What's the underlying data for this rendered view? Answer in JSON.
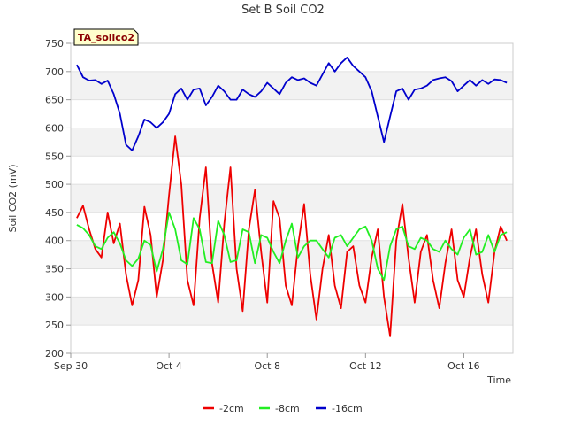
{
  "chart_data": {
    "type": "line",
    "title": "Set B Soil CO2",
    "xlabel": "Time",
    "ylabel": "Soil CO2 (mV)",
    "tag": "TA_soilco2",
    "ylim": [
      200,
      750
    ],
    "yticks": [
      200,
      250,
      300,
      350,
      400,
      450,
      500,
      550,
      600,
      650,
      700,
      750
    ],
    "xlim": [
      "2023-09-30",
      "2023-10-18"
    ],
    "xticks": [
      {
        "label": "Sep 30",
        "date": "2023-09-30"
      },
      {
        "label": "Oct 4",
        "date": "2023-10-04"
      },
      {
        "label": "Oct 8",
        "date": "2023-10-08"
      },
      {
        "label": "Oct 12",
        "date": "2023-10-12"
      },
      {
        "label": "Oct 16",
        "date": "2023-10-16"
      }
    ],
    "grid": true,
    "legend_position": "bottom",
    "series": [
      {
        "name": "-2cm",
        "color": "#ee0000",
        "points": [
          [
            "2023-09-30T06:00",
            440
          ],
          [
            "2023-09-30T12:00",
            462
          ],
          [
            "2023-09-30T18:00",
            420
          ],
          [
            "2023-10-01T00:00",
            385
          ],
          [
            "2023-10-01T06:00",
            370
          ],
          [
            "2023-10-01T12:00",
            450
          ],
          [
            "2023-10-01T18:00",
            395
          ],
          [
            "2023-10-02T00:00",
            430
          ],
          [
            "2023-10-02T06:00",
            340
          ],
          [
            "2023-10-02T12:00",
            285
          ],
          [
            "2023-10-02T18:00",
            330
          ],
          [
            "2023-10-03T00:00",
            460
          ],
          [
            "2023-10-03T06:00",
            410
          ],
          [
            "2023-10-03T12:00",
            300
          ],
          [
            "2023-10-03T18:00",
            365
          ],
          [
            "2023-10-04T00:00",
            480
          ],
          [
            "2023-10-04T06:00",
            585
          ],
          [
            "2023-10-04T12:00",
            500
          ],
          [
            "2023-10-04T18:00",
            330
          ],
          [
            "2023-10-05T00:00",
            285
          ],
          [
            "2023-10-05T06:00",
            440
          ],
          [
            "2023-10-05T12:00",
            530
          ],
          [
            "2023-10-05T18:00",
            360
          ],
          [
            "2023-10-06T00:00",
            290
          ],
          [
            "2023-10-06T06:00",
            430
          ],
          [
            "2023-10-06T12:00",
            530
          ],
          [
            "2023-10-06T18:00",
            350
          ],
          [
            "2023-10-07T00:00",
            275
          ],
          [
            "2023-10-07T06:00",
            420
          ],
          [
            "2023-10-07T12:00",
            490
          ],
          [
            "2023-10-07T18:00",
            380
          ],
          [
            "2023-10-08T00:00",
            290
          ],
          [
            "2023-10-08T06:00",
            470
          ],
          [
            "2023-10-08T12:00",
            440
          ],
          [
            "2023-10-08T18:00",
            320
          ],
          [
            "2023-10-09T00:00",
            285
          ],
          [
            "2023-10-09T06:00",
            390
          ],
          [
            "2023-10-09T12:00",
            465
          ],
          [
            "2023-10-09T18:00",
            340
          ],
          [
            "2023-10-10T00:00",
            260
          ],
          [
            "2023-10-10T06:00",
            350
          ],
          [
            "2023-10-10T12:00",
            410
          ],
          [
            "2023-10-10T18:00",
            320
          ],
          [
            "2023-10-11T00:00",
            280
          ],
          [
            "2023-10-11T06:00",
            380
          ],
          [
            "2023-10-11T12:00",
            390
          ],
          [
            "2023-10-11T18:00",
            320
          ],
          [
            "2023-10-12T00:00",
            290
          ],
          [
            "2023-10-12T06:00",
            370
          ],
          [
            "2023-10-12T12:00",
            420
          ],
          [
            "2023-10-12T18:00",
            300
          ],
          [
            "2023-10-13T00:00",
            230
          ],
          [
            "2023-10-13T06:00",
            400
          ],
          [
            "2023-10-13T12:00",
            465
          ],
          [
            "2023-10-13T18:00",
            370
          ],
          [
            "2023-10-14T00:00",
            290
          ],
          [
            "2023-10-14T06:00",
            380
          ],
          [
            "2023-10-14T12:00",
            410
          ],
          [
            "2023-10-14T18:00",
            330
          ],
          [
            "2023-10-15T00:00",
            280
          ],
          [
            "2023-10-15T06:00",
            360
          ],
          [
            "2023-10-15T12:00",
            420
          ],
          [
            "2023-10-15T18:00",
            330
          ],
          [
            "2023-10-16T00:00",
            300
          ],
          [
            "2023-10-16T06:00",
            370
          ],
          [
            "2023-10-16T12:00",
            420
          ],
          [
            "2023-10-16T18:00",
            340
          ],
          [
            "2023-10-17T00:00",
            290
          ],
          [
            "2023-10-17T06:00",
            380
          ],
          [
            "2023-10-17T12:00",
            425
          ],
          [
            "2023-10-17T18:00",
            400
          ]
        ]
      },
      {
        "name": "-8cm",
        "color": "#22ee22",
        "points": [
          [
            "2023-09-30T06:00",
            428
          ],
          [
            "2023-09-30T12:00",
            422
          ],
          [
            "2023-09-30T18:00",
            410
          ],
          [
            "2023-10-01T00:00",
            390
          ],
          [
            "2023-10-01T06:00",
            385
          ],
          [
            "2023-10-01T12:00",
            405
          ],
          [
            "2023-10-01T18:00",
            415
          ],
          [
            "2023-10-02T00:00",
            395
          ],
          [
            "2023-10-02T06:00",
            365
          ],
          [
            "2023-10-02T12:00",
            355
          ],
          [
            "2023-10-02T18:00",
            368
          ],
          [
            "2023-10-03T00:00",
            400
          ],
          [
            "2023-10-03T06:00",
            392
          ],
          [
            "2023-10-03T12:00",
            345
          ],
          [
            "2023-10-03T18:00",
            385
          ],
          [
            "2023-10-04T00:00",
            450
          ],
          [
            "2023-10-04T06:00",
            420
          ],
          [
            "2023-10-04T12:00",
            365
          ],
          [
            "2023-10-04T18:00",
            358
          ],
          [
            "2023-10-05T00:00",
            440
          ],
          [
            "2023-10-05T06:00",
            420
          ],
          [
            "2023-10-05T12:00",
            362
          ],
          [
            "2023-10-05T18:00",
            360
          ],
          [
            "2023-10-06T00:00",
            435
          ],
          [
            "2023-10-06T06:00",
            410
          ],
          [
            "2023-10-06T12:00",
            362
          ],
          [
            "2023-10-06T18:00",
            365
          ],
          [
            "2023-10-07T00:00",
            420
          ],
          [
            "2023-10-07T06:00",
            415
          ],
          [
            "2023-10-07T12:00",
            360
          ],
          [
            "2023-10-07T18:00",
            410
          ],
          [
            "2023-10-08T00:00",
            405
          ],
          [
            "2023-10-08T06:00",
            380
          ],
          [
            "2023-10-08T12:00",
            360
          ],
          [
            "2023-10-08T18:00",
            400
          ],
          [
            "2023-10-09T00:00",
            430
          ],
          [
            "2023-10-09T06:00",
            370
          ],
          [
            "2023-10-09T12:00",
            390
          ],
          [
            "2023-10-09T18:00",
            400
          ],
          [
            "2023-10-10T00:00",
            400
          ],
          [
            "2023-10-10T06:00",
            385
          ],
          [
            "2023-10-10T12:00",
            370
          ],
          [
            "2023-10-10T18:00",
            405
          ],
          [
            "2023-10-11T00:00",
            410
          ],
          [
            "2023-10-11T06:00",
            390
          ],
          [
            "2023-10-11T12:00",
            405
          ],
          [
            "2023-10-11T18:00",
            420
          ],
          [
            "2023-10-12T00:00",
            425
          ],
          [
            "2023-10-12T06:00",
            400
          ],
          [
            "2023-10-12T12:00",
            350
          ],
          [
            "2023-10-12T18:00",
            330
          ],
          [
            "2023-10-13T00:00",
            390
          ],
          [
            "2023-10-13T06:00",
            420
          ],
          [
            "2023-10-13T12:00",
            425
          ],
          [
            "2023-10-13T18:00",
            390
          ],
          [
            "2023-10-14T00:00",
            385
          ],
          [
            "2023-10-14T06:00",
            405
          ],
          [
            "2023-10-14T12:00",
            400
          ],
          [
            "2023-10-14T18:00",
            385
          ],
          [
            "2023-10-15T00:00",
            380
          ],
          [
            "2023-10-15T06:00",
            400
          ],
          [
            "2023-10-15T12:00",
            385
          ],
          [
            "2023-10-15T18:00",
            375
          ],
          [
            "2023-10-16T00:00",
            405
          ],
          [
            "2023-10-16T06:00",
            420
          ],
          [
            "2023-10-16T12:00",
            375
          ],
          [
            "2023-10-16T18:00",
            380
          ],
          [
            "2023-10-17T00:00",
            410
          ],
          [
            "2023-10-17T06:00",
            380
          ],
          [
            "2023-10-17T12:00",
            410
          ],
          [
            "2023-10-17T18:00",
            415
          ]
        ]
      },
      {
        "name": "-16cm",
        "color": "#0000cc",
        "points": [
          [
            "2023-09-30T06:00",
            712
          ],
          [
            "2023-09-30T12:00",
            690
          ],
          [
            "2023-09-30T18:00",
            684
          ],
          [
            "2023-10-01T00:00",
            685
          ],
          [
            "2023-10-01T06:00",
            678
          ],
          [
            "2023-10-01T12:00",
            684
          ],
          [
            "2023-10-01T18:00",
            660
          ],
          [
            "2023-10-02T00:00",
            625
          ],
          [
            "2023-10-02T06:00",
            570
          ],
          [
            "2023-10-02T12:00",
            560
          ],
          [
            "2023-10-02T18:00",
            585
          ],
          [
            "2023-10-03T00:00",
            615
          ],
          [
            "2023-10-03T06:00",
            610
          ],
          [
            "2023-10-03T12:00",
            600
          ],
          [
            "2023-10-03T18:00",
            610
          ],
          [
            "2023-10-04T00:00",
            625
          ],
          [
            "2023-10-04T06:00",
            660
          ],
          [
            "2023-10-04T12:00",
            670
          ],
          [
            "2023-10-04T18:00",
            650
          ],
          [
            "2023-10-05T00:00",
            668
          ],
          [
            "2023-10-05T06:00",
            670
          ],
          [
            "2023-10-05T12:00",
            640
          ],
          [
            "2023-10-05T18:00",
            655
          ],
          [
            "2023-10-06T00:00",
            675
          ],
          [
            "2023-10-06T06:00",
            665
          ],
          [
            "2023-10-06T12:00",
            650
          ],
          [
            "2023-10-06T18:00",
            650
          ],
          [
            "2023-10-07T00:00",
            668
          ],
          [
            "2023-10-07T06:00",
            660
          ],
          [
            "2023-10-07T12:00",
            655
          ],
          [
            "2023-10-07T18:00",
            665
          ],
          [
            "2023-10-08T00:00",
            680
          ],
          [
            "2023-10-08T06:00",
            670
          ],
          [
            "2023-10-08T12:00",
            660
          ],
          [
            "2023-10-08T18:00",
            680
          ],
          [
            "2023-10-09T00:00",
            690
          ],
          [
            "2023-10-09T06:00",
            685
          ],
          [
            "2023-10-09T12:00",
            688
          ],
          [
            "2023-10-09T18:00",
            680
          ],
          [
            "2023-10-10T00:00",
            675
          ],
          [
            "2023-10-10T06:00",
            695
          ],
          [
            "2023-10-10T12:00",
            715
          ],
          [
            "2023-10-10T18:00",
            700
          ],
          [
            "2023-10-11T00:00",
            715
          ],
          [
            "2023-10-11T06:00",
            725
          ],
          [
            "2023-10-11T12:00",
            710
          ],
          [
            "2023-10-11T18:00",
            700
          ],
          [
            "2023-10-12T00:00",
            690
          ],
          [
            "2023-10-12T06:00",
            665
          ],
          [
            "2023-10-12T12:00",
            620
          ],
          [
            "2023-10-12T18:00",
            575
          ],
          [
            "2023-10-13T00:00",
            620
          ],
          [
            "2023-10-13T06:00",
            665
          ],
          [
            "2023-10-13T12:00",
            670
          ],
          [
            "2023-10-13T18:00",
            650
          ],
          [
            "2023-10-14T00:00",
            668
          ],
          [
            "2023-10-14T06:00",
            670
          ],
          [
            "2023-10-14T12:00",
            675
          ],
          [
            "2023-10-14T18:00",
            685
          ],
          [
            "2023-10-15T00:00",
            688
          ],
          [
            "2023-10-15T06:00",
            690
          ],
          [
            "2023-10-15T12:00",
            683
          ],
          [
            "2023-10-15T18:00",
            665
          ],
          [
            "2023-10-16T00:00",
            675
          ],
          [
            "2023-10-16T06:00",
            685
          ],
          [
            "2023-10-16T12:00",
            675
          ],
          [
            "2023-10-16T18:00",
            685
          ],
          [
            "2023-10-17T00:00",
            678
          ],
          [
            "2023-10-17T06:00",
            686
          ],
          [
            "2023-10-17T12:00",
            685
          ],
          [
            "2023-10-17T18:00",
            680
          ]
        ]
      }
    ]
  }
}
